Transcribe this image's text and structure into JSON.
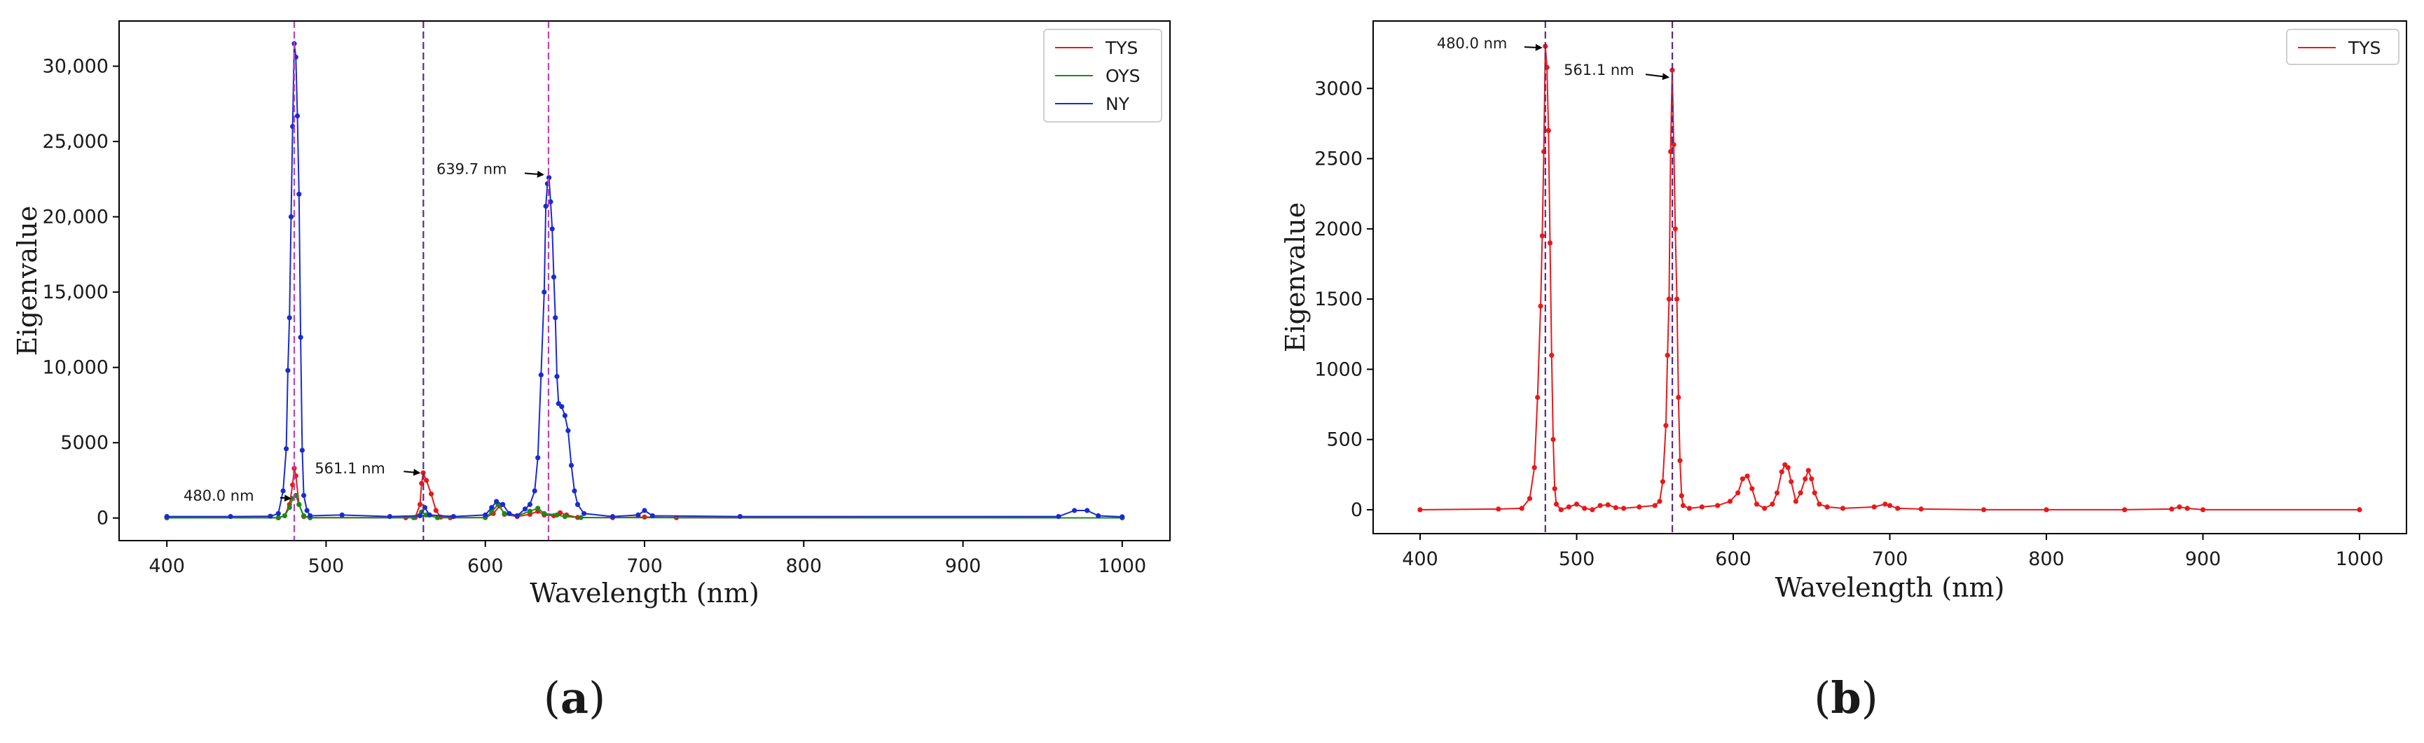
{
  "chart_data": [
    {
      "id": "a",
      "type": "line",
      "panel_label": {
        "open": "(",
        "letter": "a",
        "close": ")"
      },
      "xlabel": "Wavelength (nm)",
      "ylabel": "Eigenvalue",
      "xlim": [
        370,
        1030
      ],
      "ylim": [
        -1500,
        33000
      ],
      "xticks": [
        400,
        500,
        600,
        700,
        800,
        900,
        1000
      ],
      "xtick_labels": [
        "400",
        "500",
        "600",
        "700",
        "800",
        "900",
        "1000"
      ],
      "yticks": [
        0,
        5000,
        10000,
        15000,
        20000,
        25000,
        30000
      ],
      "ytick_labels": [
        "0",
        "5000",
        "10,000",
        "15,000",
        "20,000",
        "25,000",
        "30,000"
      ],
      "grid": false,
      "legend_position": "top-right",
      "vlines": [
        {
          "x": 480.0,
          "color": "#c040c0"
        },
        {
          "x": 561.1,
          "color": "#5a2a8a"
        },
        {
          "x": 639.7,
          "color": "#c040c0"
        }
      ],
      "annotations": [
        {
          "text": "480.0 nm",
          "x": 480.0,
          "y": 1300
        },
        {
          "text": "561.1 nm",
          "x": 561.1,
          "y": 3000
        },
        {
          "text": "639.7 nm",
          "x": 639.7,
          "y": 22800
        }
      ],
      "series": [
        {
          "name": "TYS",
          "color": "#e8191b",
          "points": [
            [
              400,
              15
            ],
            [
              470,
              20
            ],
            [
              474,
              150
            ],
            [
              477,
              900
            ],
            [
              479,
              2200
            ],
            [
              480,
              3300
            ],
            [
              481,
              2800
            ],
            [
              483,
              900
            ],
            [
              486,
              100
            ],
            [
              490,
              20
            ],
            [
              550,
              20
            ],
            [
              556,
              40
            ],
            [
              559,
              900
            ],
            [
              560,
              2300
            ],
            [
              561,
              3000
            ],
            [
              563,
              2500
            ],
            [
              566,
              1600
            ],
            [
              569,
              500
            ],
            [
              572,
              60
            ],
            [
              578,
              20
            ],
            [
              600,
              30
            ],
            [
              605,
              300
            ],
            [
              609,
              800
            ],
            [
              612,
              250
            ],
            [
              620,
              100
            ],
            [
              628,
              250
            ],
            [
              633,
              450
            ],
            [
              637,
              200
            ],
            [
              643,
              150
            ],
            [
              647,
              350
            ],
            [
              651,
              200
            ],
            [
              658,
              40
            ],
            [
              680,
              20
            ],
            [
              700,
              60
            ],
            [
              720,
              20
            ],
            [
              1000,
              10
            ]
          ]
        },
        {
          "name": "OYS",
          "color": "#1b8a1b",
          "points": [
            [
              400,
              10
            ],
            [
              470,
              15
            ],
            [
              474,
              150
            ],
            [
              477,
              700
            ],
            [
              479,
              1300
            ],
            [
              481,
              1500
            ],
            [
              483,
              900
            ],
            [
              486,
              150
            ],
            [
              490,
              20
            ],
            [
              555,
              20
            ],
            [
              560,
              400
            ],
            [
              563,
              200
            ],
            [
              570,
              20
            ],
            [
              600,
              30
            ],
            [
              604,
              400
            ],
            [
              608,
              900
            ],
            [
              612,
              300
            ],
            [
              620,
              150
            ],
            [
              628,
              450
            ],
            [
              633,
              650
            ],
            [
              637,
              300
            ],
            [
              645,
              200
            ],
            [
              650,
              100
            ],
            [
              660,
              30
            ],
            [
              1000,
              10
            ]
          ]
        },
        {
          "name": "NY",
          "color": "#1a2bcf",
          "points": [
            [
              400,
              100
            ],
            [
              440,
              100
            ],
            [
              465,
              120
            ],
            [
              470,
              300
            ],
            [
              473,
              1800
            ],
            [
              475,
              4600
            ],
            [
              476,
              9800
            ],
            [
              477,
              13300
            ],
            [
              478,
              20000
            ],
            [
              479,
              26000
            ],
            [
              480,
              31500
            ],
            [
              481,
              30600
            ],
            [
              482,
              26700
            ],
            [
              483,
              21500
            ],
            [
              484,
              12000
            ],
            [
              485,
              4500
            ],
            [
              486,
              1500
            ],
            [
              488,
              500
            ],
            [
              490,
              150
            ],
            [
              510,
              200
            ],
            [
              540,
              100
            ],
            [
              559,
              150
            ],
            [
              562,
              700
            ],
            [
              565,
              200
            ],
            [
              580,
              100
            ],
            [
              600,
              200
            ],
            [
              604,
              700
            ],
            [
              607,
              1100
            ],
            [
              611,
              900
            ],
            [
              615,
              300
            ],
            [
              620,
              150
            ],
            [
              625,
              600
            ],
            [
              628,
              900
            ],
            [
              631,
              1800
            ],
            [
              633,
              4000
            ],
            [
              635,
              9500
            ],
            [
              637,
              15000
            ],
            [
              638,
              20700
            ],
            [
              639,
              22200
            ],
            [
              640,
              22600
            ],
            [
              641,
              21000
            ],
            [
              642,
              19200
            ],
            [
              643,
              16000
            ],
            [
              644,
              13300
            ],
            [
              645,
              9400
            ],
            [
              646,
              7600
            ],
            [
              648,
              7400
            ],
            [
              650,
              6800
            ],
            [
              652,
              5800
            ],
            [
              654,
              3500
            ],
            [
              656,
              1800
            ],
            [
              658,
              900
            ],
            [
              662,
              300
            ],
            [
              680,
              100
            ],
            [
              696,
              200
            ],
            [
              700,
              500
            ],
            [
              705,
              150
            ],
            [
              760,
              100
            ],
            [
              960,
              100
            ],
            [
              970,
              500
            ],
            [
              978,
              500
            ],
            [
              985,
              150
            ],
            [
              1000,
              80
            ]
          ]
        }
      ]
    },
    {
      "id": "b",
      "type": "line",
      "panel_label": {
        "open": "(",
        "letter": "b",
        "close": ")"
      },
      "xlabel": "Wavelength (nm)",
      "ylabel": "Eigenvalue",
      "xlim": [
        370,
        1030
      ],
      "ylim": [
        -170,
        3480
      ],
      "xticks": [
        400,
        500,
        600,
        700,
        800,
        900,
        1000
      ],
      "xtick_labels": [
        "400",
        "500",
        "600",
        "700",
        "800",
        "900",
        "1000"
      ],
      "yticks": [
        0,
        500,
        1000,
        1500,
        2000,
        2500,
        3000
      ],
      "ytick_labels": [
        "0",
        "500",
        "1000",
        "1500",
        "2000",
        "2500",
        "3000"
      ],
      "grid": false,
      "legend_position": "top-right",
      "vlines": [
        {
          "x": 480.0,
          "color": "#5a2a8a"
        },
        {
          "x": 561.1,
          "color": "#5a2a8a"
        }
      ],
      "annotations": [
        {
          "text": "480.0 nm",
          "x": 480.0,
          "y": 3290
        },
        {
          "text": "561.1 nm",
          "x": 561.1,
          "y": 3080
        }
      ],
      "series": [
        {
          "name": "TYS",
          "color": "#e8191b",
          "points": [
            [
              400,
              0
            ],
            [
              450,
              5
            ],
            [
              465,
              10
            ],
            [
              470,
              80
            ],
            [
              473,
              300
            ],
            [
              475,
              800
            ],
            [
              477,
              1450
            ],
            [
              478,
              1950
            ],
            [
              479,
              2550
            ],
            [
              480,
              3300
            ],
            [
              481,
              3150
            ],
            [
              482,
              2700
            ],
            [
              483,
              1900
            ],
            [
              484,
              1100
            ],
            [
              485,
              500
            ],
            [
              486,
              150
            ],
            [
              487,
              40
            ],
            [
              490,
              0
            ],
            [
              495,
              20
            ],
            [
              500,
              40
            ],
            [
              505,
              10
            ],
            [
              510,
              0
            ],
            [
              515,
              30
            ],
            [
              520,
              35
            ],
            [
              525,
              15
            ],
            [
              530,
              10
            ],
            [
              540,
              20
            ],
            [
              550,
              30
            ],
            [
              553,
              60
            ],
            [
              555,
              200
            ],
            [
              557,
              600
            ],
            [
              558,
              1100
            ],
            [
              559,
              1500
            ],
            [
              560,
              2550
            ],
            [
              561,
              3130
            ],
            [
              562,
              2600
            ],
            [
              563,
              2000
            ],
            [
              564,
              1500
            ],
            [
              565,
              800
            ],
            [
              566,
              350
            ],
            [
              567,
              100
            ],
            [
              568,
              30
            ],
            [
              572,
              10
            ],
            [
              580,
              20
            ],
            [
              590,
              30
            ],
            [
              598,
              60
            ],
            [
              603,
              120
            ],
            [
              606,
              220
            ],
            [
              609,
              240
            ],
            [
              612,
              150
            ],
            [
              615,
              40
            ],
            [
              620,
              10
            ],
            [
              625,
              40
            ],
            [
              628,
              120
            ],
            [
              631,
              270
            ],
            [
              633,
              320
            ],
            [
              635,
              300
            ],
            [
              637,
              200
            ],
            [
              640,
              60
            ],
            [
              643,
              120
            ],
            [
              646,
              220
            ],
            [
              648,
              280
            ],
            [
              650,
              220
            ],
            [
              652,
              120
            ],
            [
              655,
              40
            ],
            [
              660,
              20
            ],
            [
              670,
              10
            ],
            [
              690,
              20
            ],
            [
              697,
              40
            ],
            [
              700,
              30
            ],
            [
              705,
              10
            ],
            [
              720,
              5
            ],
            [
              760,
              0
            ],
            [
              800,
              0
            ],
            [
              850,
              0
            ],
            [
              880,
              5
            ],
            [
              885,
              20
            ],
            [
              890,
              10
            ],
            [
              900,
              0
            ],
            [
              1000,
              0
            ]
          ]
        }
      ]
    }
  ]
}
